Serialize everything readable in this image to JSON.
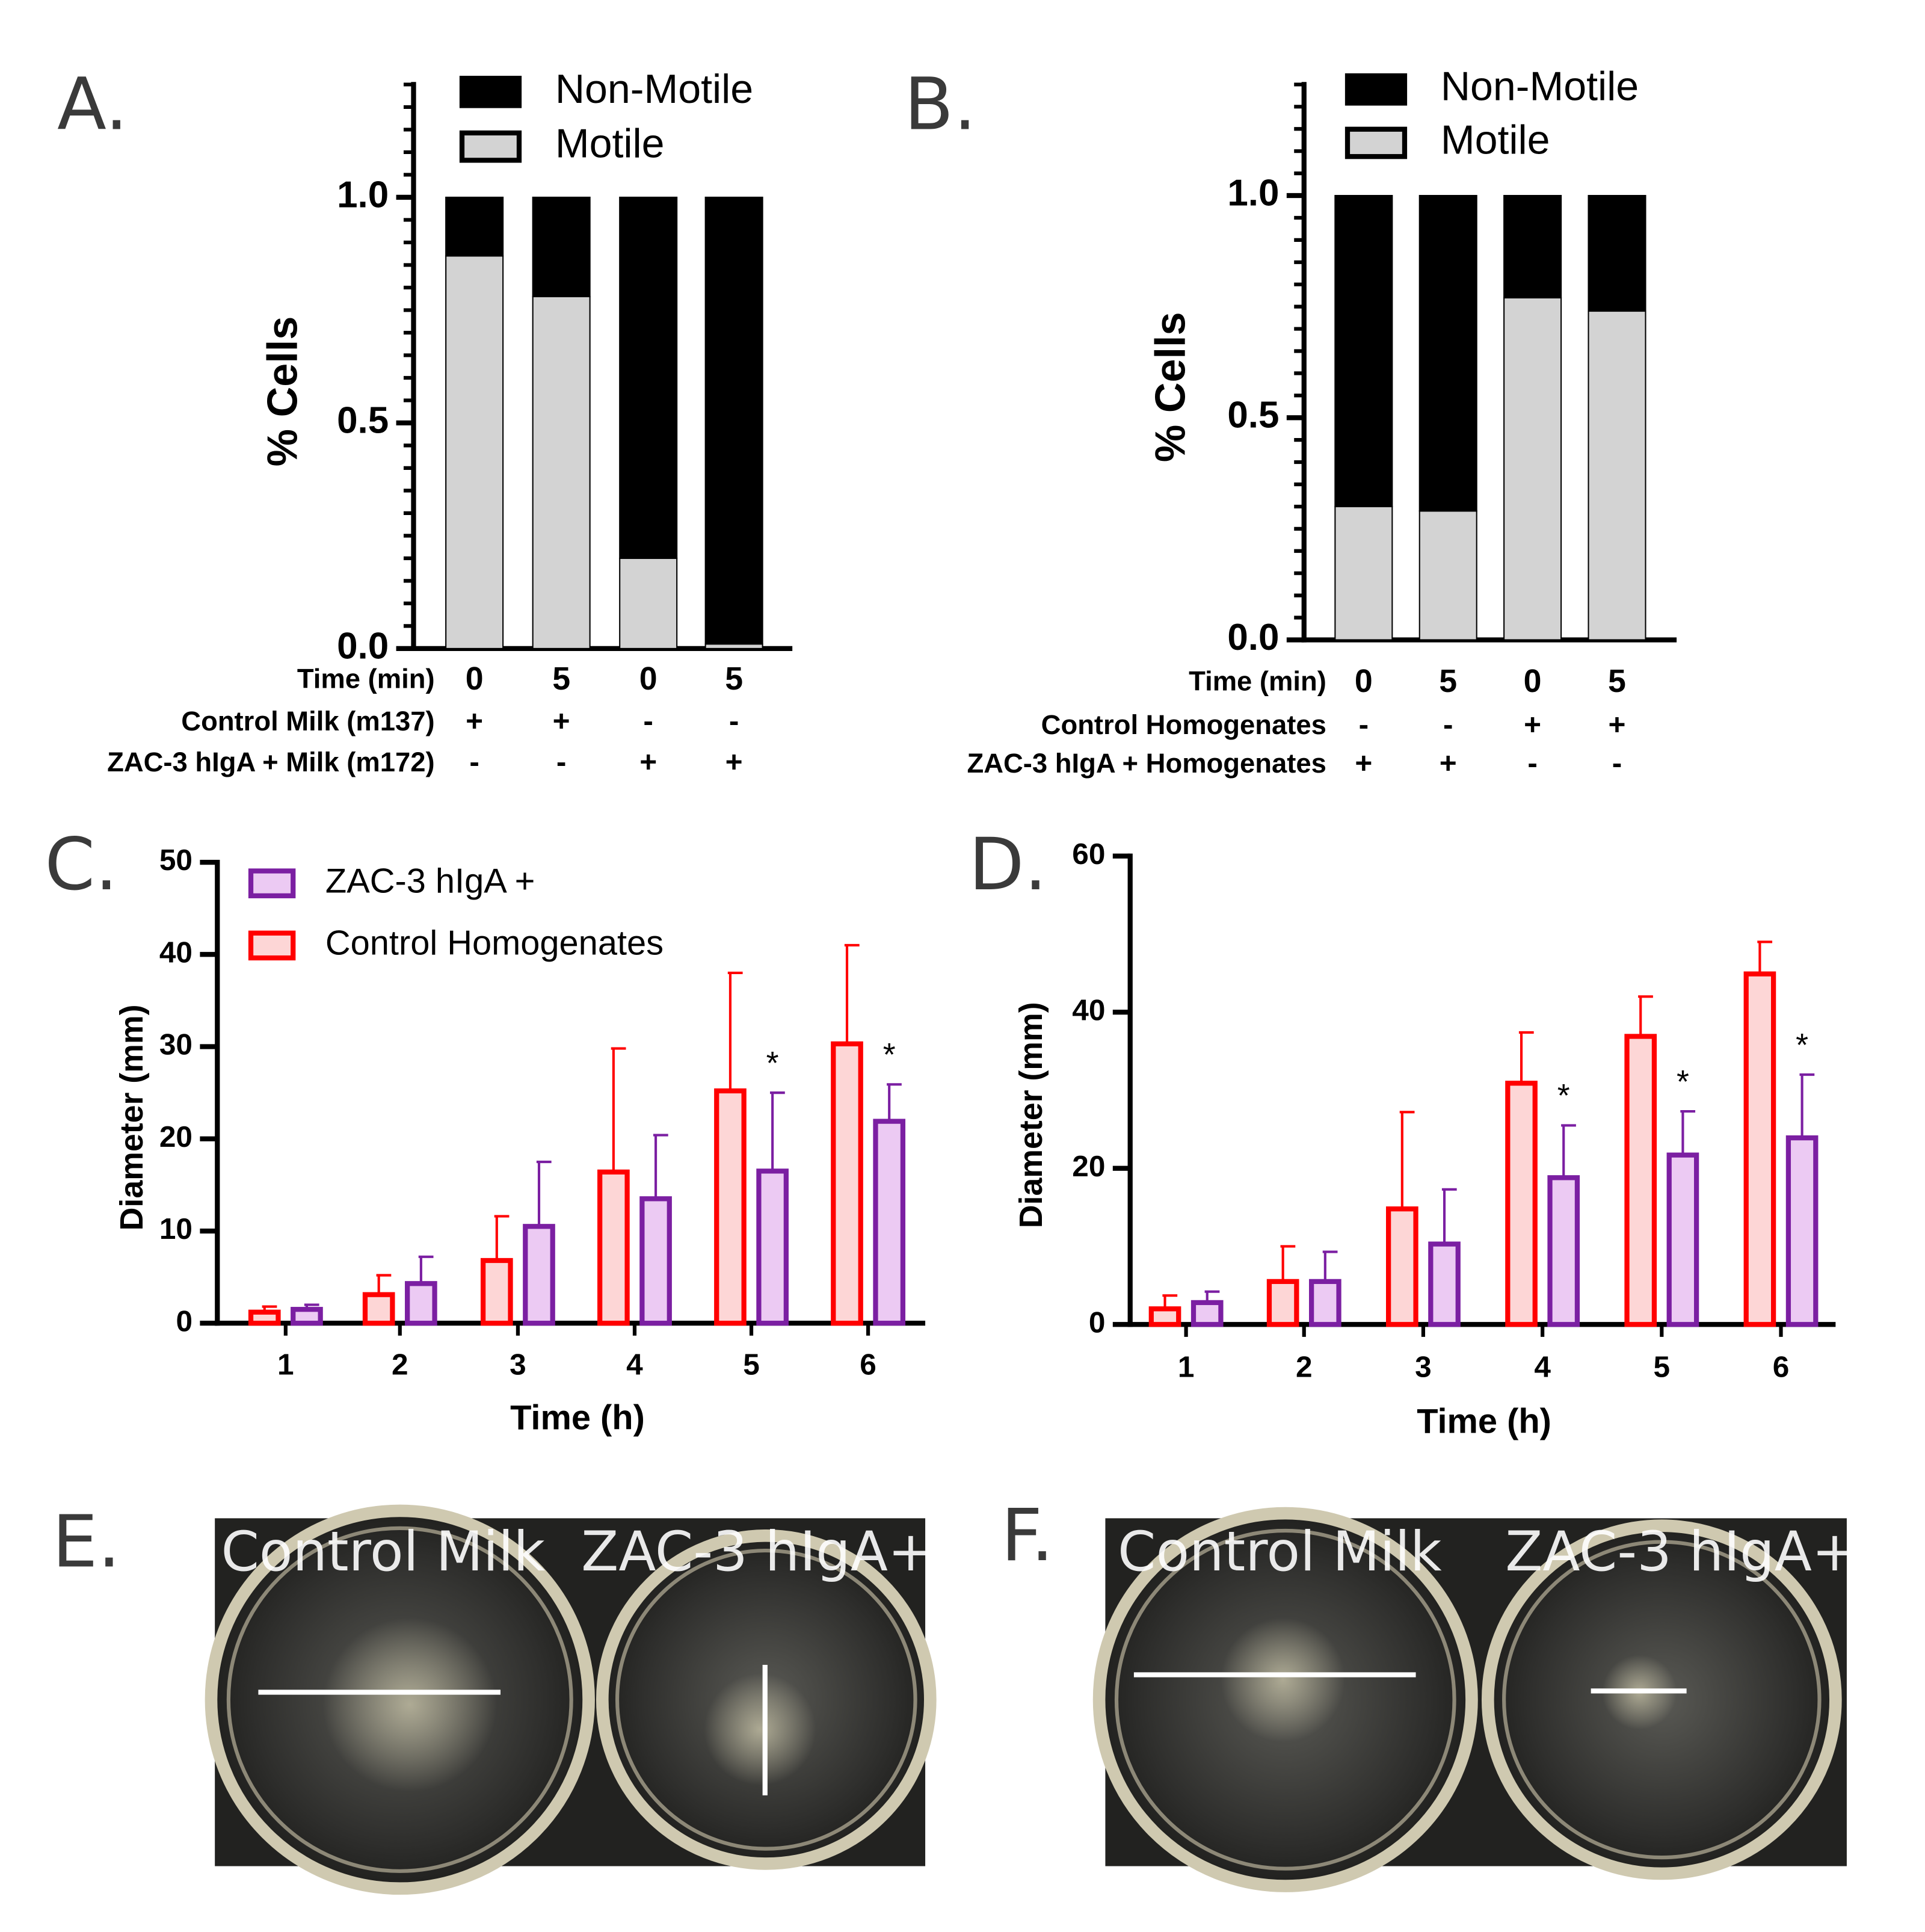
{
  "chart_data": [
    {
      "type": "stacked_bar",
      "panel_label": "A.",
      "ylabel": "% Cells",
      "ylim": [
        0,
        1.25
      ],
      "yticks": [
        {
          "value": 0,
          "label": "0.0"
        },
        {
          "value": 0.5,
          "label": "0.5"
        },
        {
          "value": 1,
          "label": "1.0"
        }
      ],
      "y_minor_divisions": 10,
      "x_table": {
        "row_labels": [
          "Time (min)",
          "Control Milk (m137)",
          "ZAC-3 hIgA + Milk (m172)"
        ],
        "rows": [
          [
            "0",
            "5",
            "0",
            "5"
          ],
          [
            "+",
            "+",
            "-",
            "-"
          ],
          [
            "-",
            "-",
            "+",
            "+"
          ]
        ]
      },
      "series": [
        {
          "name": "Non-Motile",
          "color": "#000000",
          "values": [
            0.13,
            0.22,
            0.8,
            0.99
          ]
        },
        {
          "name": "Motile",
          "color": "#d3d3d3",
          "values": [
            0.87,
            0.78,
            0.2,
            0.01
          ]
        }
      ]
    },
    {
      "type": "stacked_bar",
      "panel_label": "B.",
      "ylabel": "% Cells",
      "ylim": [
        0,
        1.25
      ],
      "yticks": [
        {
          "value": 0,
          "label": "0.0"
        },
        {
          "value": 0.5,
          "label": "0.5"
        },
        {
          "value": 1,
          "label": "1.0"
        }
      ],
      "y_minor_divisions": 10,
      "x_table": {
        "row_labels": [
          "Time (min)",
          "Control Homogenates",
          "ZAC-3 hIgA + Homogenates"
        ],
        "rows": [
          [
            "0",
            "5",
            "0",
            "5"
          ],
          [
            "-",
            "-",
            "+",
            "+"
          ],
          [
            "+",
            "+",
            "-",
            "-"
          ]
        ]
      },
      "series": [
        {
          "name": "Non-Motile",
          "color": "#000000",
          "values": [
            0.7,
            0.71,
            0.23,
            0.26
          ]
        },
        {
          "name": "Motile",
          "color": "#d3d3d3",
          "values": [
            0.3,
            0.29,
            0.77,
            0.74
          ]
        }
      ]
    },
    {
      "type": "bar",
      "panel_label": "C.",
      "xlabel": "Time (h)",
      "ylabel": "Diameter (mm)",
      "categories": [
        1,
        2,
        3,
        4,
        5,
        6
      ],
      "ylim": [
        0,
        50
      ],
      "yticks": [
        0,
        10,
        20,
        30,
        40,
        50
      ],
      "legend": true,
      "series": [
        {
          "name": "ZAC-3 hIgA +",
          "color": "#7b1fa2",
          "fill": "#eccaf3",
          "values": [
            1.5,
            4.3,
            10.5,
            13.5,
            16.5,
            21.9
          ],
          "errors": [
            0.5,
            2.9,
            7.0,
            6.9,
            8.5,
            4.0
          ],
          "annotations": [
            null,
            null,
            null,
            null,
            "*",
            "*"
          ]
        },
        {
          "name": "Control Homogenates",
          "color": "#ff0000",
          "fill": "#fdd6d6",
          "values": [
            1.2,
            3.1,
            6.8,
            16.4,
            25.2,
            30.3
          ],
          "errors": [
            0.6,
            2.1,
            4.8,
            13.4,
            12.8,
            10.7
          ],
          "annotations": [
            null,
            null,
            null,
            null,
            null,
            null
          ]
        }
      ]
    },
    {
      "type": "bar",
      "panel_label": "D.",
      "xlabel": "Time (h)",
      "ylabel": "Diameter (mm)",
      "categories": [
        1,
        2,
        3,
        4,
        5,
        6
      ],
      "ylim": [
        0,
        60
      ],
      "yticks": [
        0,
        20,
        40,
        60
      ],
      "legend": false,
      "series": [
        {
          "name": "ZAC-3 hIgA +",
          "color": "#7b1fa2",
          "fill": "#eccaf3",
          "values": [
            2.8,
            5.5,
            10.3,
            18.8,
            21.7,
            23.9
          ],
          "errors": [
            1.4,
            3.8,
            7.0,
            6.7,
            5.6,
            8.1
          ],
          "annotations": [
            null,
            null,
            null,
            "*",
            "*",
            "*"
          ]
        },
        {
          "name": "Control Homogenates",
          "color": "#ff0000",
          "fill": "#fdd6d6",
          "values": [
            2.0,
            5.5,
            14.8,
            30.9,
            36.9,
            44.9
          ],
          "errors": [
            1.7,
            4.5,
            12.4,
            6.5,
            5.1,
            4.1
          ],
          "annotations": [
            null,
            null,
            null,
            null,
            null,
            null
          ]
        }
      ]
    }
  ],
  "photos": [
    {
      "label": "E.",
      "captions": [
        "Control Milk",
        "ZAC-3 hIgA+"
      ]
    },
    {
      "label": "F.",
      "captions": [
        "Control Milk",
        "ZAC-3 hIgA+"
      ]
    }
  ]
}
